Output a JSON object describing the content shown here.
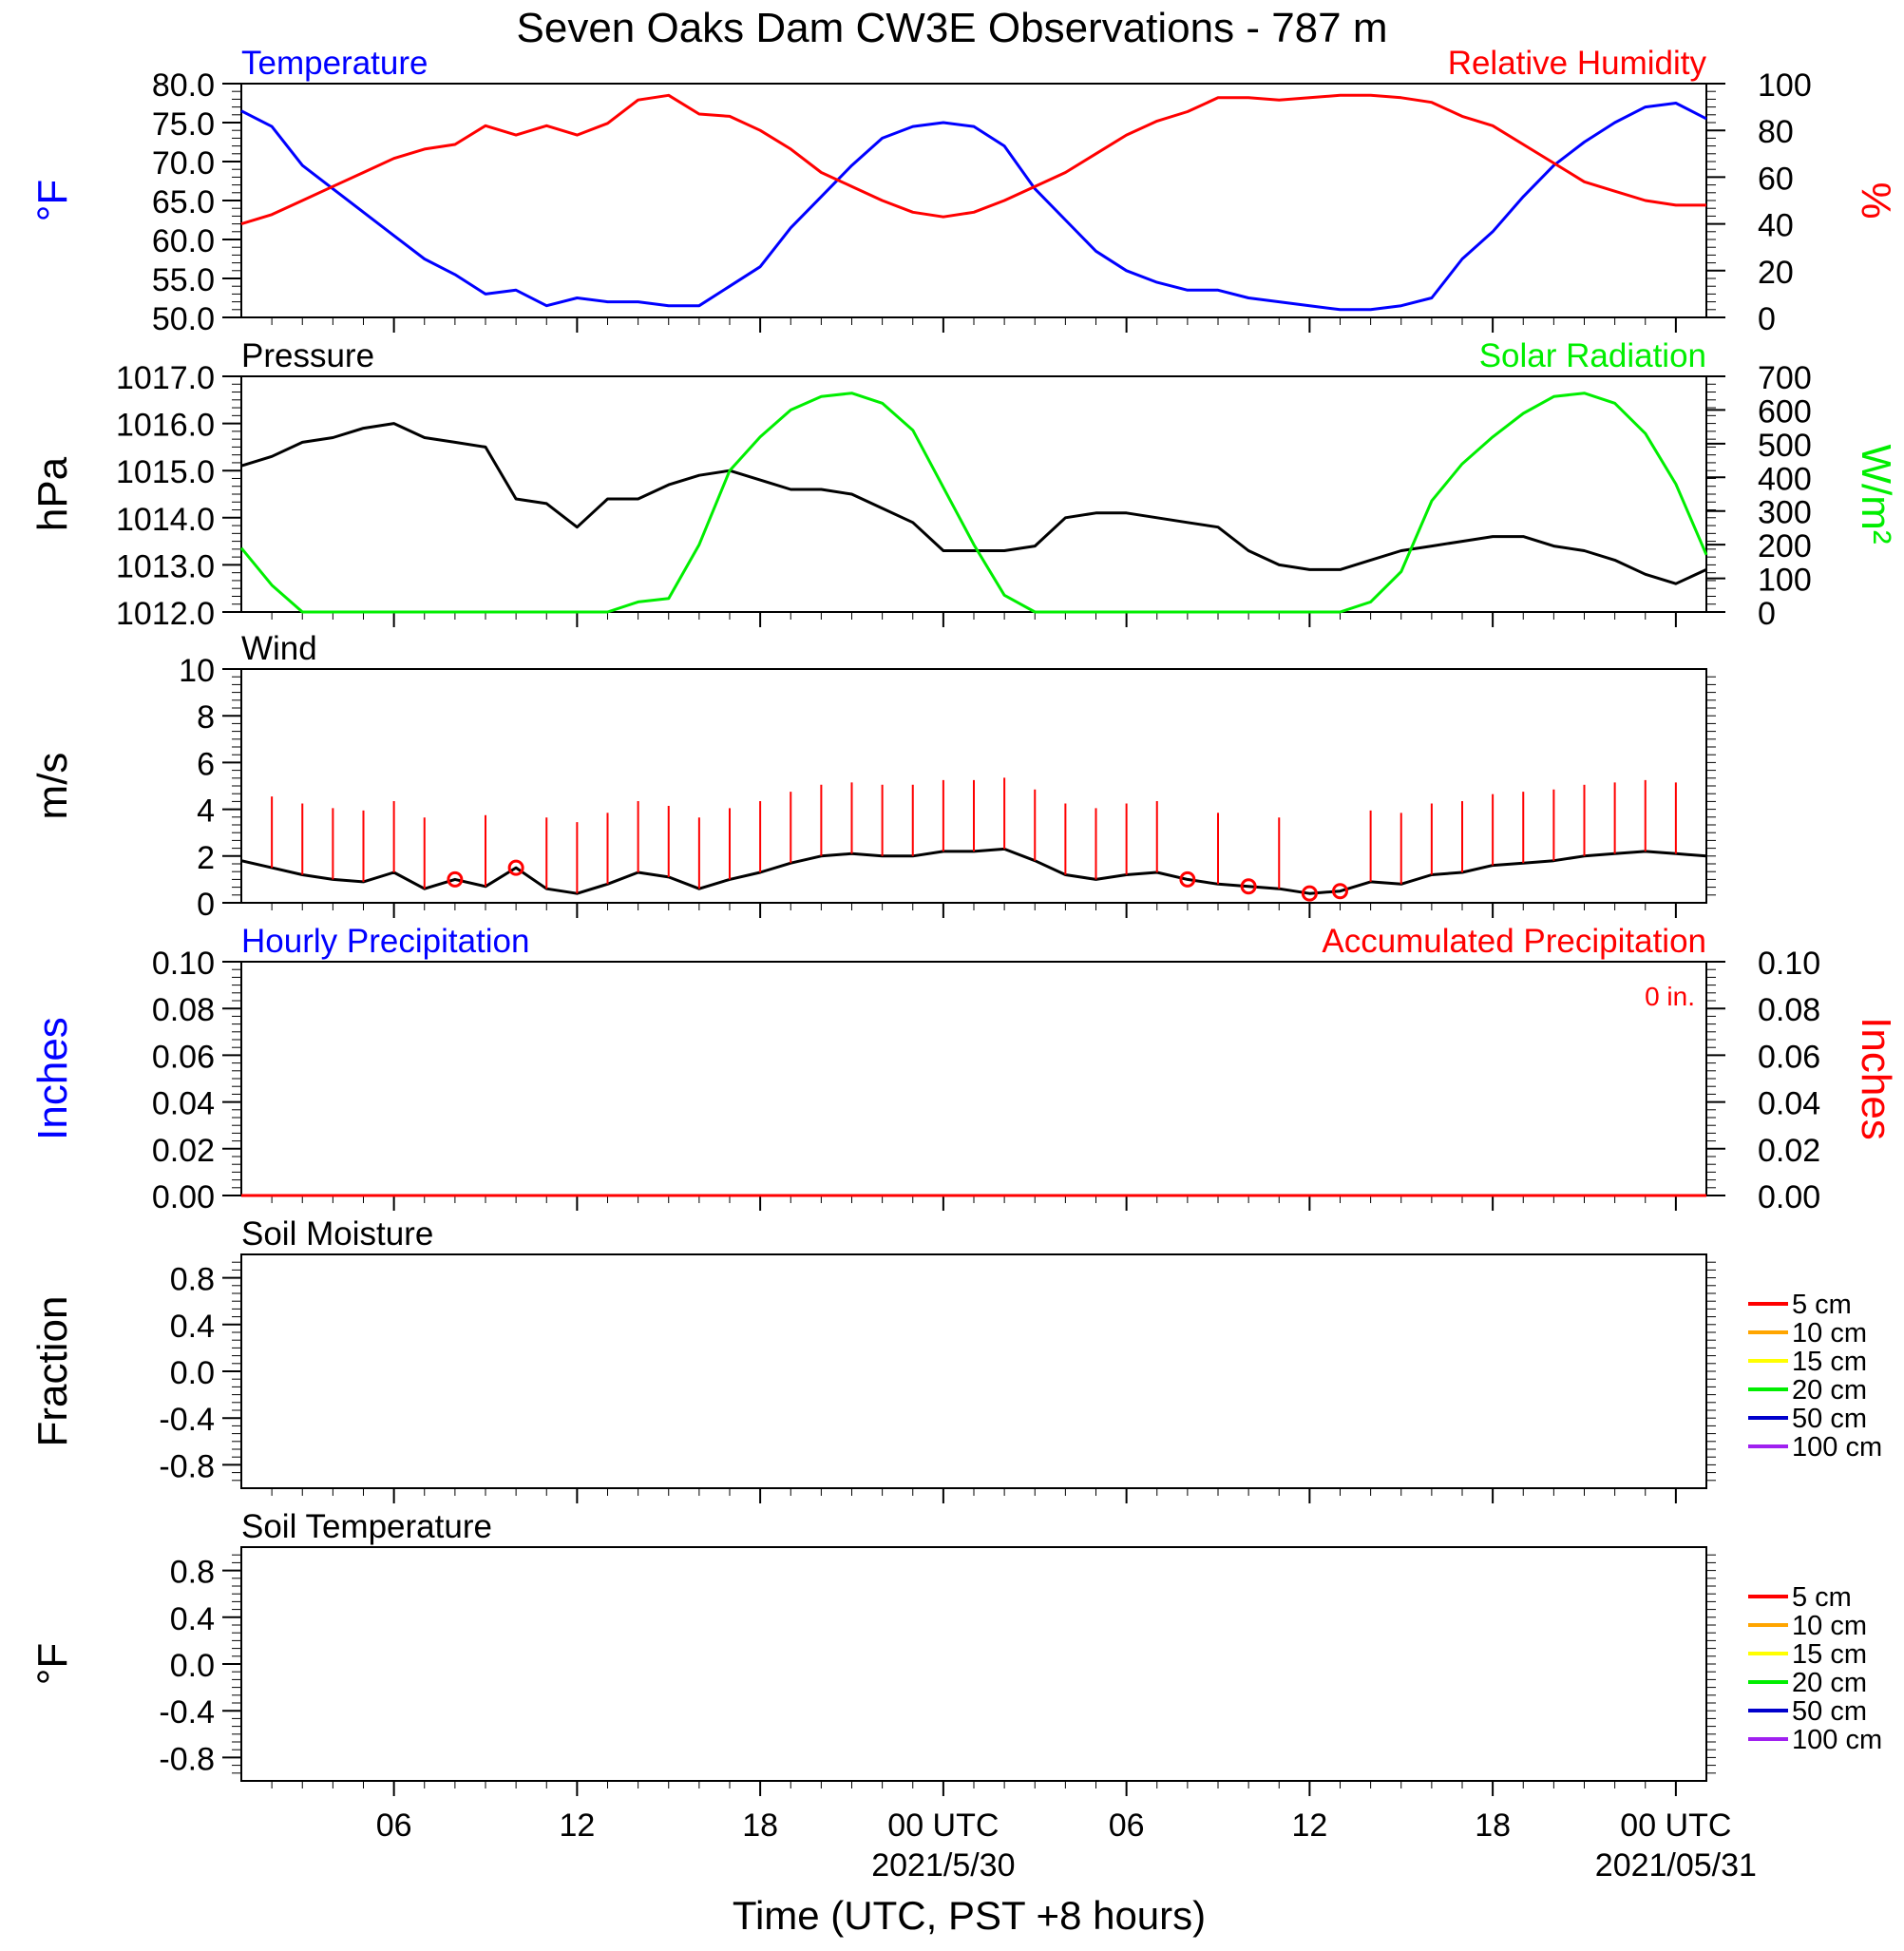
{
  "figure": {
    "title": "Seven Oaks Dam CW3E Observations - 787 m",
    "xlabel": "Time (UTC, PST +8 hours)",
    "x_ticks": [
      "06",
      "12",
      "18",
      "00 UTC",
      "06",
      "12",
      "18",
      "00 UTC"
    ],
    "x_dates": [
      "2021/5/30",
      "2021/05/31"
    ]
  },
  "colors": {
    "blue": "#0000ff",
    "red": "#ff0000",
    "black": "#000000",
    "green": "#00ee00",
    "orange": "#ffa500",
    "yellow": "#ffff00",
    "darkblue": "#0000cc",
    "purple": "#a020f0"
  },
  "chart_data": [
    {
      "type": "line",
      "label_left": "Temperature",
      "label_right": "Relative Humidity",
      "ylabel_left": "°F",
      "ylabel_right": "%",
      "ylim_left": [
        50,
        80
      ],
      "ylim_right": [
        0,
        100
      ],
      "yticks_left": [
        "80.0",
        "75.0",
        "70.0",
        "65.0",
        "60.0",
        "55.0",
        "50.0"
      ],
      "yticks_right": [
        "100",
        "80",
        "60",
        "40",
        "20",
        "0"
      ],
      "x_hours": [
        0,
        1,
        2,
        3,
        4,
        5,
        6,
        7,
        8,
        9,
        10,
        11,
        12,
        13,
        14,
        15,
        16,
        17,
        18,
        19,
        20,
        21,
        22,
        23,
        24,
        25,
        26,
        27,
        28,
        29,
        30,
        31,
        32,
        33,
        34,
        35,
        36,
        37,
        38,
        39,
        40,
        41,
        42,
        43,
        44,
        45,
        46,
        47,
        48
      ],
      "series": [
        {
          "name": "Temperature",
          "axis": "left",
          "color": "blue",
          "values": [
            76.5,
            74.5,
            69.5,
            66.5,
            63.5,
            60.5,
            57.5,
            55.5,
            53.0,
            53.5,
            51.5,
            52.5,
            52.0,
            52.0,
            51.5,
            51.5,
            54.0,
            56.5,
            61.5,
            65.5,
            69.5,
            73.0,
            74.5,
            75.0,
            74.5,
            72.0,
            66.5,
            62.5,
            58.5,
            56.0,
            54.5,
            53.5,
            53.5,
            52.5,
            52.0,
            51.5,
            51.0,
            51.0,
            51.5,
            52.5,
            57.5,
            61.0,
            65.5,
            69.5,
            72.5,
            75.0,
            77.0,
            77.5,
            75.5
          ]
        },
        {
          "name": "Relative Humidity",
          "axis": "right",
          "color": "red",
          "values": [
            40,
            44,
            50,
            56,
            62,
            68,
            72,
            74,
            82,
            78,
            82,
            78,
            83,
            93,
            95,
            87,
            86,
            80,
            72,
            62,
            56,
            50,
            45,
            43,
            45,
            50,
            56,
            62,
            70,
            78,
            84,
            88,
            94,
            94,
            93,
            94,
            95,
            95,
            94,
            92,
            86,
            82,
            74,
            66,
            58,
            54,
            50,
            48,
            48
          ]
        }
      ]
    },
    {
      "type": "line",
      "label_left": "Pressure",
      "label_right": "Solar Radiation",
      "ylabel_left": "hPa",
      "ylabel_right": "W/m²",
      "ylim_left": [
        1012,
        1017
      ],
      "ylim_right": [
        0,
        700
      ],
      "yticks_left": [
        "1017.0",
        "1016.0",
        "1015.0",
        "1014.0",
        "1013.0",
        "1012.0"
      ],
      "yticks_right": [
        "700",
        "600",
        "500",
        "400",
        "300",
        "200",
        "100",
        "0"
      ],
      "x_hours": [
        0,
        1,
        2,
        3,
        4,
        5,
        6,
        7,
        8,
        9,
        10,
        11,
        12,
        13,
        14,
        15,
        16,
        17,
        18,
        19,
        20,
        21,
        22,
        23,
        24,
        25,
        26,
        27,
        28,
        29,
        30,
        31,
        32,
        33,
        34,
        35,
        36,
        37,
        38,
        39,
        40,
        41,
        42,
        43,
        44,
        45,
        46,
        47,
        48
      ],
      "series": [
        {
          "name": "Pressure",
          "axis": "left",
          "color": "black",
          "values": [
            1015.1,
            1015.3,
            1015.6,
            1015.7,
            1015.9,
            1016.0,
            1015.7,
            1015.6,
            1015.5,
            1014.4,
            1014.3,
            1013.8,
            1014.4,
            1014.4,
            1014.7,
            1014.9,
            1015.0,
            1014.8,
            1014.6,
            1014.6,
            1014.5,
            1014.2,
            1013.9,
            1013.3,
            1013.3,
            1013.3,
            1013.4,
            1014.0,
            1014.1,
            1014.1,
            1014.0,
            1013.9,
            1013.8,
            1013.3,
            1013.0,
            1012.9,
            1012.9,
            1013.1,
            1013.3,
            1013.4,
            1013.5,
            1013.6,
            1013.6,
            1013.4,
            1013.3,
            1013.1,
            1012.8,
            1012.6,
            1012.9
          ]
        },
        {
          "name": "Solar Radiation",
          "axis": "right",
          "color": "green",
          "values": [
            190,
            80,
            0,
            0,
            0,
            0,
            0,
            0,
            0,
            0,
            0,
            0,
            0,
            30,
            40,
            200,
            420,
            520,
            600,
            640,
            650,
            620,
            540,
            370,
            200,
            50,
            0,
            0,
            0,
            0,
            0,
            0,
            0,
            0,
            0,
            0,
            0,
            30,
            120,
            330,
            440,
            520,
            590,
            640,
            650,
            620,
            530,
            380,
            170
          ]
        }
      ]
    },
    {
      "type": "line",
      "label_left": "Wind",
      "ylabel_left": "m/s",
      "ylim_left": [
        0,
        10
      ],
      "yticks_left": [
        "10",
        "8",
        "6",
        "4",
        "2",
        "0"
      ],
      "x_hours": [
        0,
        1,
        2,
        3,
        4,
        5,
        6,
        7,
        8,
        9,
        10,
        11,
        12,
        13,
        14,
        15,
        16,
        17,
        18,
        19,
        20,
        21,
        22,
        23,
        24,
        25,
        26,
        27,
        28,
        29,
        30,
        31,
        32,
        33,
        34,
        35,
        36,
        37,
        38,
        39,
        40,
        41,
        42,
        43,
        44,
        45,
        46,
        47,
        48
      ],
      "series": [
        {
          "name": "Wind",
          "axis": "left",
          "color": "black",
          "values": [
            1.8,
            1.5,
            1.2,
            1.0,
            0.9,
            1.3,
            0.6,
            1.0,
            0.7,
            1.5,
            0.6,
            0.4,
            0.8,
            1.3,
            1.1,
            0.6,
            1.0,
            1.3,
            1.7,
            2.0,
            2.1,
            2.0,
            2.0,
            2.2,
            2.2,
            2.3,
            1.8,
            1.2,
            1.0,
            1.2,
            1.3,
            1.0,
            0.8,
            0.7,
            0.6,
            0.4,
            0.5,
            0.9,
            0.8,
            1.2,
            1.3,
            1.6,
            1.7,
            1.8,
            2.0,
            2.1,
            2.2,
            2.1,
            2.0
          ]
        }
      ],
      "calm_hours": [
        7,
        9,
        31,
        33,
        35,
        36
      ]
    },
    {
      "type": "line",
      "label_left": "Hourly Precipitation",
      "label_right": "Accumulated Precipitation",
      "annotation": "0 in.",
      "ylabel_left": "Inches",
      "ylabel_right": "Inches",
      "ylim_left": [
        0,
        0.1
      ],
      "ylim_right": [
        0,
        0.1
      ],
      "yticks_left": [
        "0.10",
        "0.08",
        "0.06",
        "0.04",
        "0.02",
        "0.00"
      ],
      "yticks_right": [
        "0.10",
        "0.08",
        "0.06",
        "0.04",
        "0.02",
        "0.00"
      ],
      "x_hours": [
        0,
        48
      ],
      "series": [
        {
          "name": "Hourly Precipitation",
          "axis": "left",
          "color": "blue",
          "values": [
            0,
            0
          ]
        },
        {
          "name": "Accumulated Precipitation",
          "axis": "right",
          "color": "red",
          "values": [
            0,
            0
          ]
        }
      ]
    },
    {
      "type": "line",
      "label_left": "Soil Moisture",
      "ylabel_left": "Fraction",
      "ylim_left": [
        -1,
        1
      ],
      "yticks_left": [
        "0.8",
        "0.4",
        "0.0",
        "-0.4",
        "-0.8"
      ],
      "legend": [
        {
          "label": "5 cm",
          "color": "red"
        },
        {
          "label": "10 cm",
          "color": "orange"
        },
        {
          "label": "15 cm",
          "color": "yellow"
        },
        {
          "label": "20 cm",
          "color": "green"
        },
        {
          "label": "50 cm",
          "color": "darkblue"
        },
        {
          "label": "100 cm",
          "color": "purple"
        }
      ],
      "series": []
    },
    {
      "type": "line",
      "label_left": "Soil Temperature",
      "ylabel_left": "°F",
      "ylim_left": [
        -1,
        1
      ],
      "yticks_left": [
        "0.8",
        "0.4",
        "0.0",
        "-0.4",
        "-0.8"
      ],
      "legend": [
        {
          "label": "5 cm",
          "color": "red"
        },
        {
          "label": "10 cm",
          "color": "orange"
        },
        {
          "label": "15 cm",
          "color": "yellow"
        },
        {
          "label": "20 cm",
          "color": "green"
        },
        {
          "label": "50 cm",
          "color": "darkblue"
        },
        {
          "label": "100 cm",
          "color": "purple"
        }
      ],
      "series": []
    }
  ]
}
